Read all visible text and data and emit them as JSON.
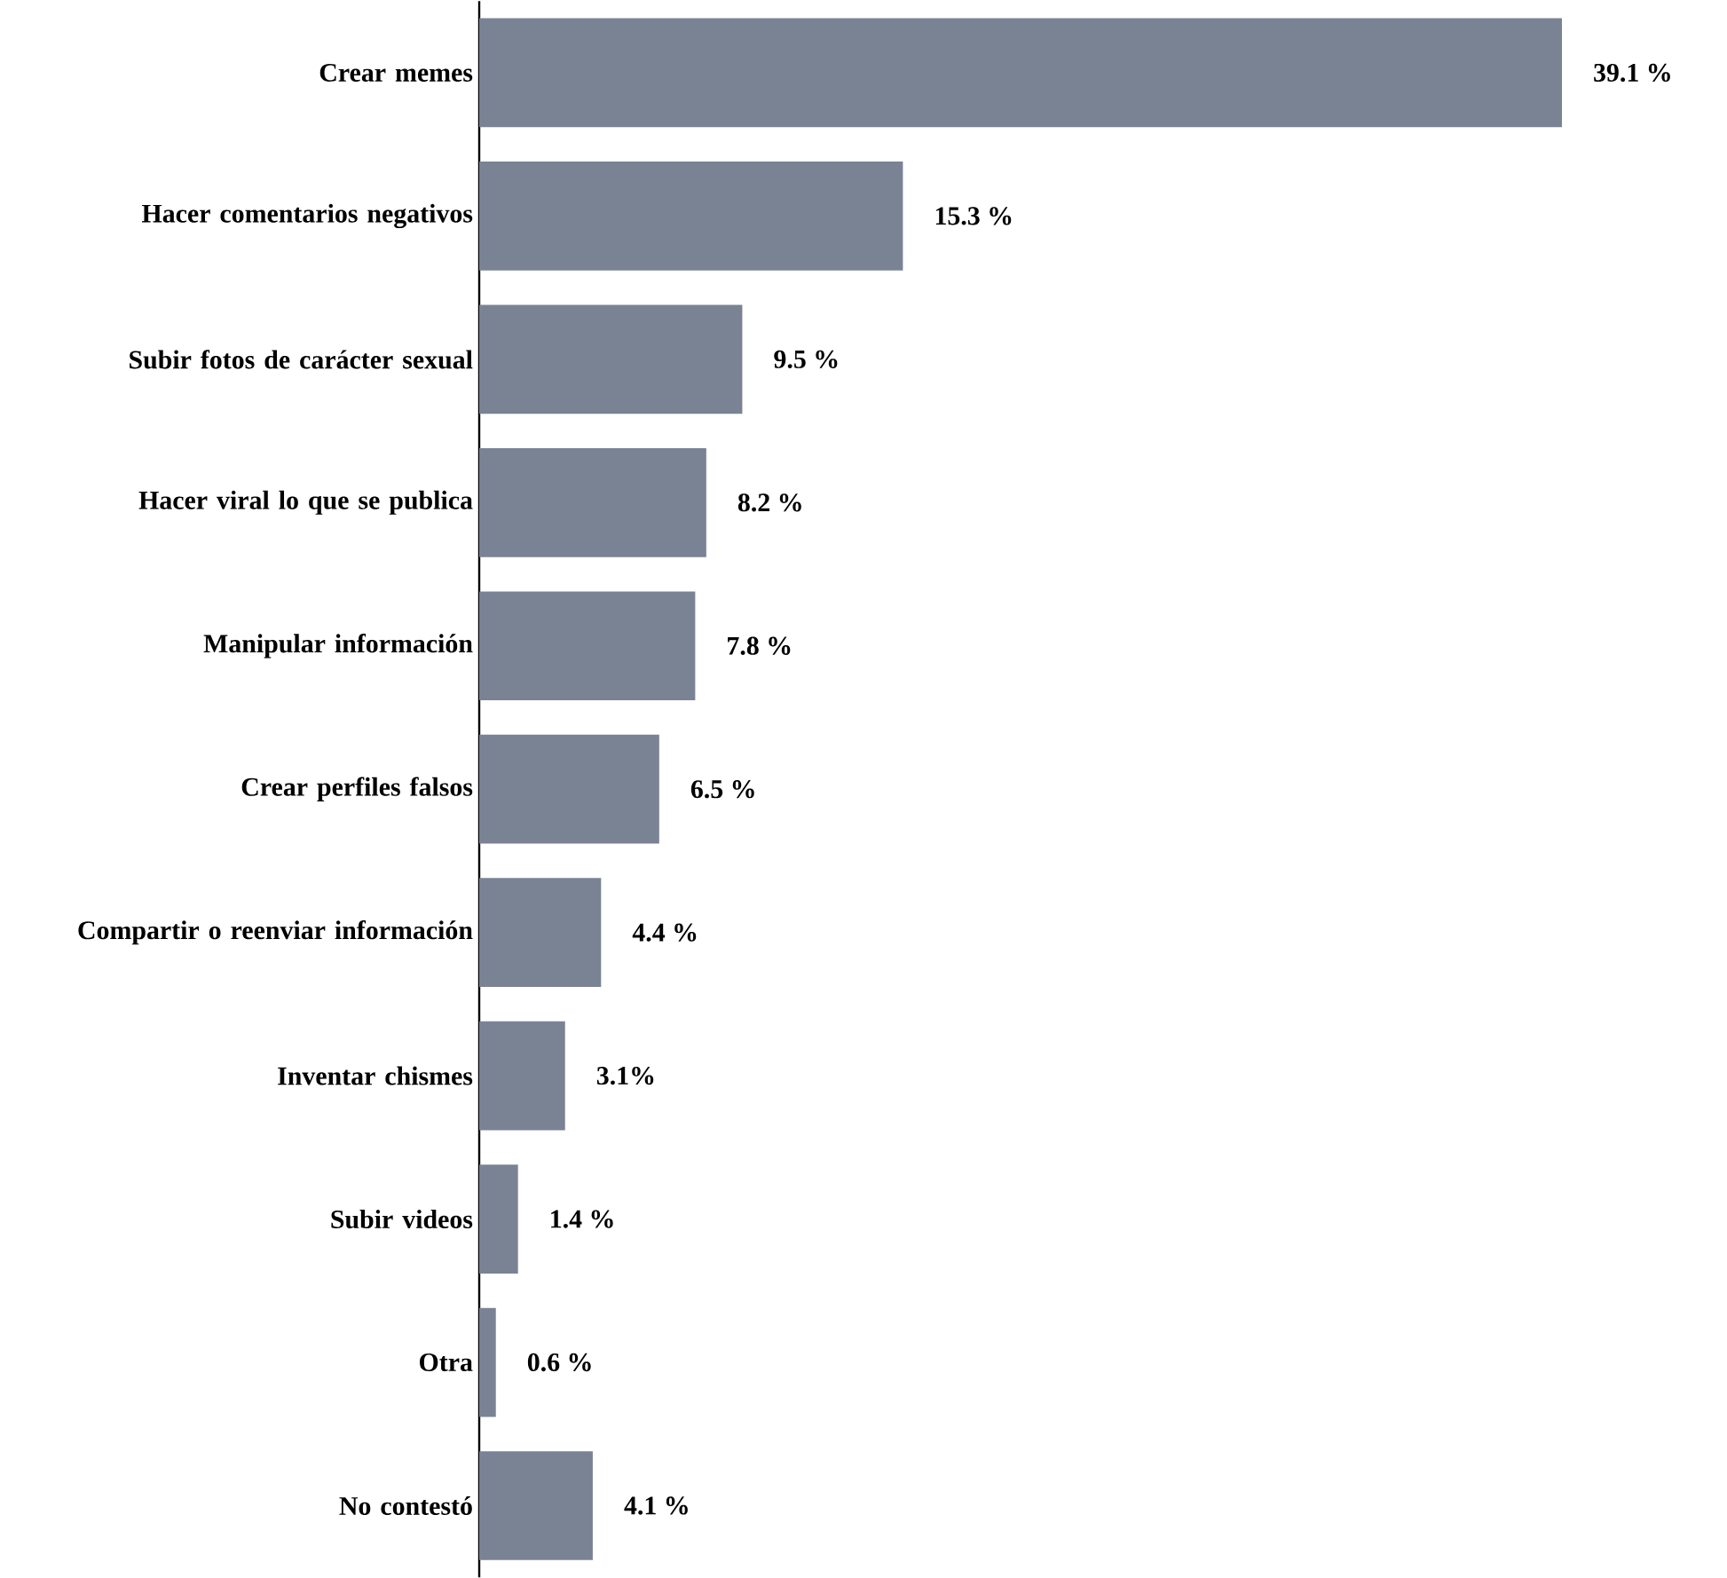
{
  "chart_data": {
    "type": "bar",
    "orientation": "horizontal",
    "categories": [
      "Crear memes",
      "Hacer comentarios negativos",
      "Subir fotos de carácter sexual",
      "Hacer viral lo que se publica",
      "Manipular información",
      "Crear perfiles falsos",
      "Compartir o reenviar información",
      "Inventar chismes",
      "Subir videos",
      "Otra",
      "No contestó"
    ],
    "values": [
      39.1,
      15.3,
      9.5,
      8.2,
      7.8,
      6.5,
      4.4,
      3.1,
      1.4,
      0.6,
      4.1
    ],
    "value_labels": [
      "39.1 %",
      "15.3 %",
      "9.5 %",
      "8.2 %",
      "7.8 %",
      "6.5 %",
      "4.4 %",
      "3.1%",
      "1.4 %",
      "0.6 %",
      "4.1 %"
    ],
    "color": "#7a8394"
  }
}
